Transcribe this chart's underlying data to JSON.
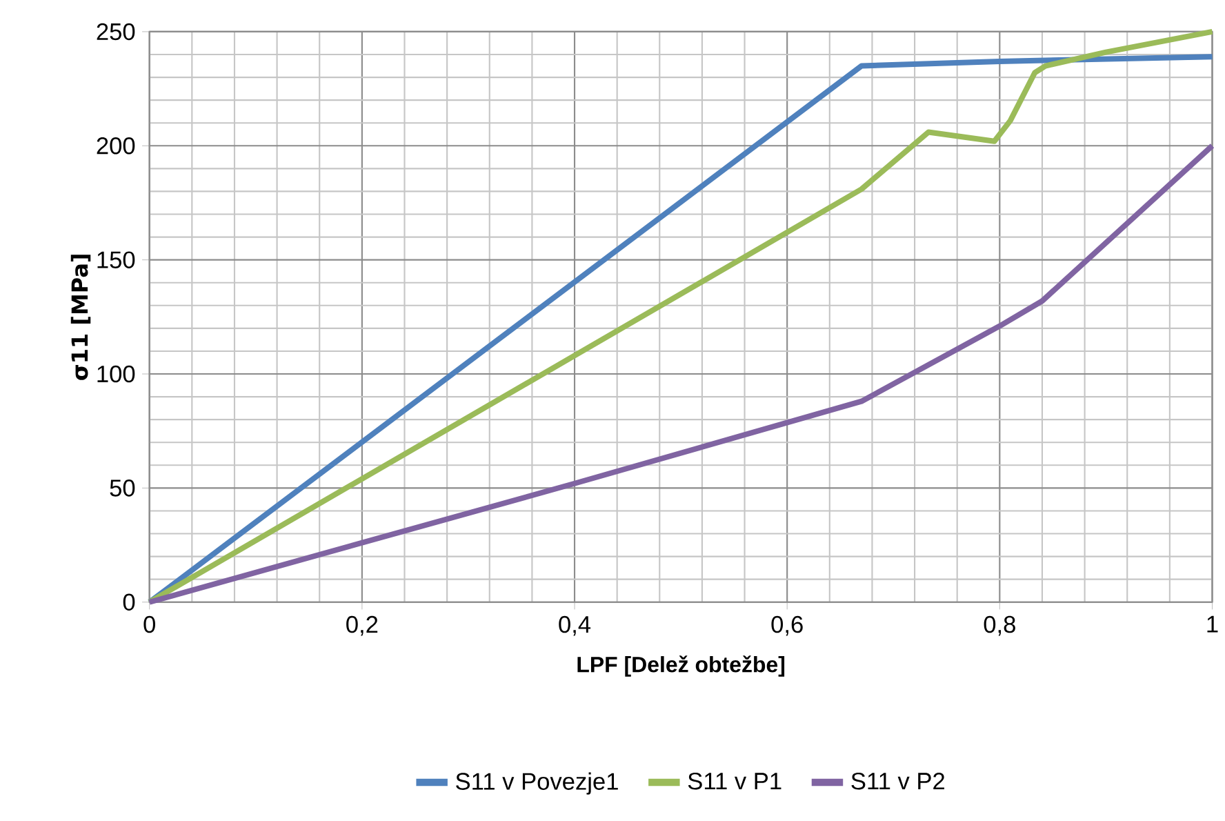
{
  "chart_data": {
    "type": "line",
    "xlabel": "LPF [Delež obtežbe]",
    "ylabel": "σ11 [MPa]",
    "xlim": [
      0,
      1
    ],
    "ylim": [
      0,
      250
    ],
    "xticks": [
      0,
      {
        "value": 0.2,
        "label": "0,2"
      },
      {
        "value": 0.4,
        "label": "0,4"
      },
      {
        "value": 0.6,
        "label": "0,6"
      },
      {
        "value": 0.8,
        "label": "0,8"
      },
      1
    ],
    "yticks": [
      0,
      50,
      100,
      150,
      200,
      250
    ],
    "grid": true,
    "legend": "bottom",
    "marker": "none",
    "line_style": "solid",
    "series": [
      {
        "name": "S11 v Povezje1",
        "color": "#4f81bd",
        "x": [
          0,
          0.67,
          0.8,
          1
        ],
        "values": [
          0,
          235,
          237,
          239
        ]
      },
      {
        "name": "S11 v P1",
        "color": "#9bbb59",
        "x": [
          0,
          0.67,
          0.733,
          0.795,
          0.81,
          0.833,
          0.843,
          0.9,
          1
        ],
        "values": [
          0,
          181,
          206,
          202,
          211,
          232,
          235,
          241,
          250
        ]
      },
      {
        "name": "S11 v P2",
        "color": "#8064a2",
        "x": [
          0,
          0.4,
          0.67,
          0.8,
          0.84,
          1
        ],
        "values": [
          0,
          52,
          88,
          121,
          132,
          200
        ]
      }
    ]
  }
}
